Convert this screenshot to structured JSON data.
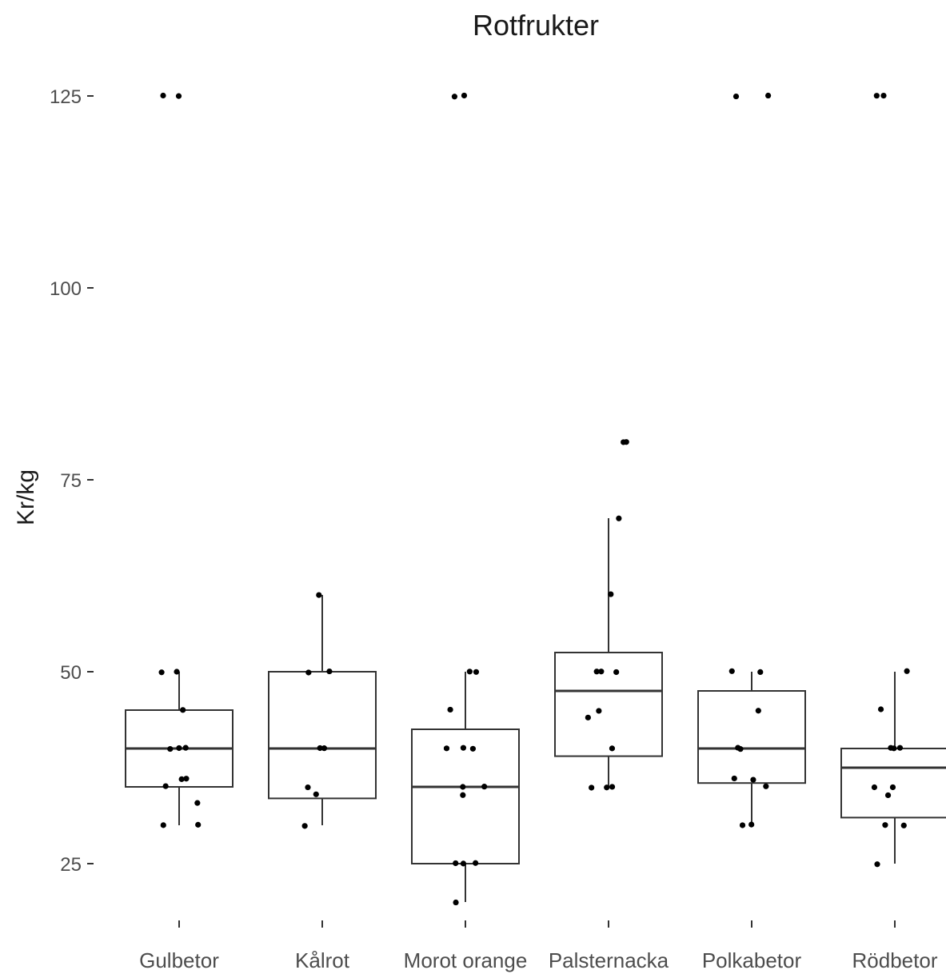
{
  "chart_data": {
    "type": "boxplot",
    "title": "Rotfrukter",
    "xlabel": "",
    "ylabel": "Kr/kg",
    "ylim": [
      17,
      128
    ],
    "yticks": [
      25,
      50,
      75,
      100,
      125
    ],
    "grid": false,
    "categories": [
      "Gulbetor",
      "Kålrot",
      "Morot orange",
      "Palsternacka",
      "Polkabetor",
      "Rödbetor"
    ],
    "boxes": [
      {
        "q1": 35,
        "median": 40,
        "q3": 45,
        "whisker_low": 30,
        "whisker_high": 50
      },
      {
        "q1": 33.5,
        "median": 40,
        "q3": 50,
        "whisker_low": 30,
        "whisker_high": 60
      },
      {
        "q1": 25,
        "median": 35,
        "q3": 42.5,
        "whisker_low": 20,
        "whisker_high": 50
      },
      {
        "q1": 39,
        "median": 47.5,
        "q3": 52.5,
        "whisker_low": 35,
        "whisker_high": 70
      },
      {
        "q1": 35.5,
        "median": 40,
        "q3": 47.5,
        "whisker_low": 30,
        "whisker_high": 50
      },
      {
        "q1": 31,
        "median": 37.5,
        "q3": 40,
        "whisker_low": 25,
        "whisker_high": 50
      }
    ],
    "points": [
      [
        125,
        125,
        50,
        50,
        45,
        40,
        40,
        40,
        36,
        36,
        35,
        33,
        30,
        30
      ],
      [
        60,
        50,
        50,
        40,
        40,
        35,
        34,
        30
      ],
      [
        125,
        125,
        50,
        50,
        45,
        40,
        40,
        40,
        35,
        35,
        34,
        25,
        25,
        25,
        20
      ],
      [
        80,
        80,
        70,
        60,
        50,
        50,
        50,
        45,
        44,
        40,
        35,
        35,
        35
      ],
      [
        125,
        125,
        50,
        50,
        45,
        40,
        40,
        36,
        36,
        35,
        30,
        30
      ],
      [
        125,
        125,
        50,
        45,
        40,
        40,
        40,
        35,
        35,
        34,
        30,
        30,
        25
      ]
    ]
  }
}
